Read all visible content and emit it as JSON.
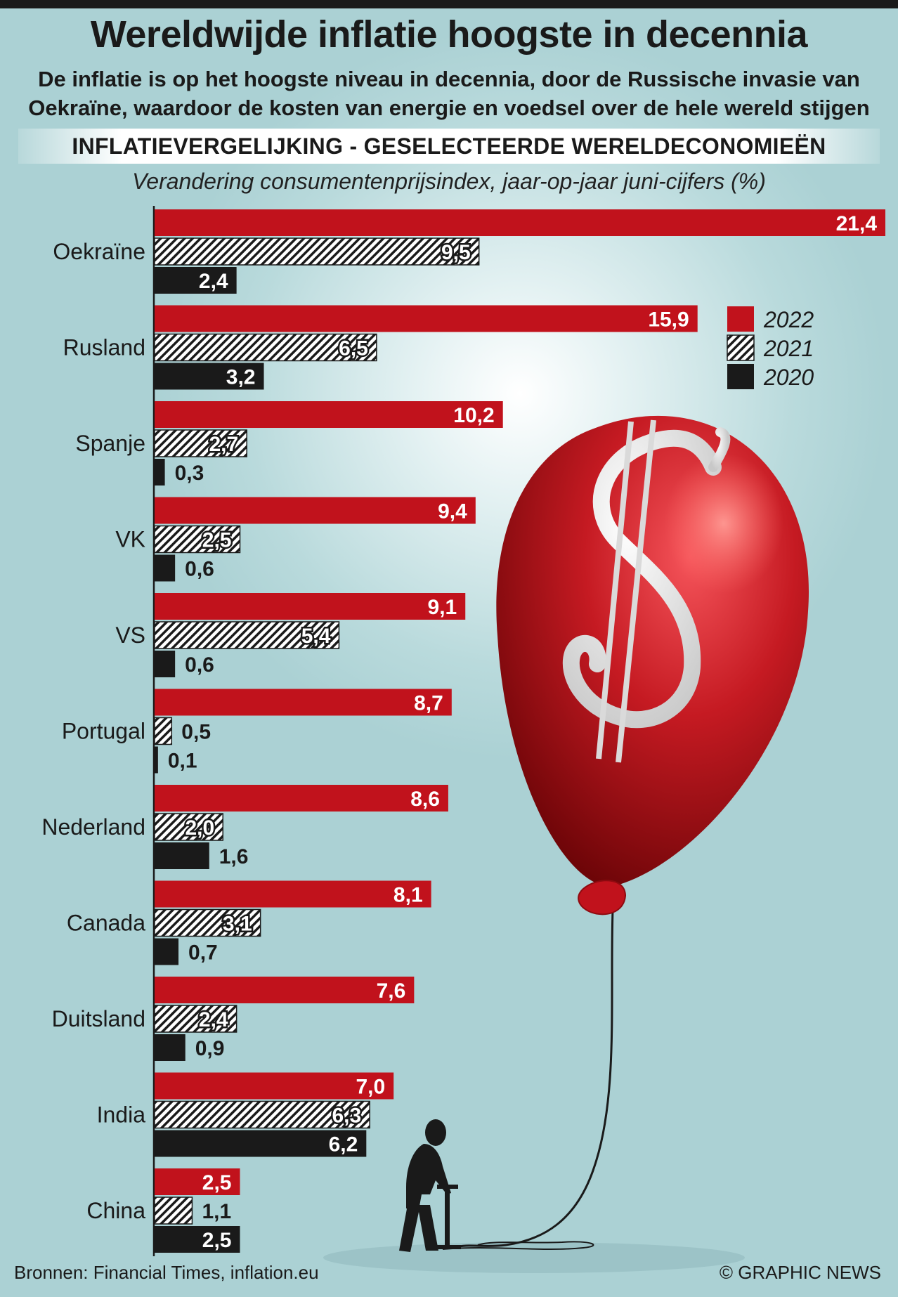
{
  "title": "Wereldwijde inflatie hoogste in decennia",
  "subtitle": "De inflatie is op het hoogste niveau in decennia, door de Russische invasie van Oekraïne, waardoor de kosten van energie en voedsel over de hele wereld stijgen",
  "banner": "INFLATIEVERGELIJKING - GESELECTEERDE WERELDECONOMIEËN",
  "unit_label": "Verandering consumentenprijsindex, jaar-op-jaar juni-cijfers (%)",
  "footer": {
    "sources": "Bronnen: Financial Times, inflation.eu",
    "credit": "© GRAPHIC NEWS"
  },
  "colors": {
    "series_2022": "#c1121c",
    "series_2021": "hatched-black",
    "series_2020": "#1a1a1a",
    "background": "#b9dadc"
  },
  "illustration": {
    "balloon_icon": "red-balloon-with-dollar-sign",
    "person_icon": "silhouette-man-with-air-pump"
  },
  "chart_data": {
    "type": "bar",
    "orientation": "horizontal",
    "categories": [
      "Oekraïne",
      "Rusland",
      "Spanje",
      "VK",
      "VS",
      "Portugal",
      "Nederland",
      "Canada",
      "Duitsland",
      "India",
      "China"
    ],
    "series": [
      {
        "name": "2022",
        "values": [
          21.4,
          15.9,
          10.2,
          9.4,
          9.1,
          8.7,
          8.6,
          8.1,
          7.6,
          7.0,
          2.5
        ],
        "labels": [
          "21,4",
          "15,9",
          "10,2",
          "9,4",
          "9,1",
          "8,7",
          "8,6",
          "8,1",
          "7,6",
          "7,0",
          "2,5"
        ]
      },
      {
        "name": "2021",
        "values": [
          9.5,
          6.5,
          2.7,
          2.5,
          5.4,
          0.5,
          2.0,
          3.1,
          2.4,
          6.3,
          1.1
        ],
        "labels": [
          "9,5",
          "6,5",
          "2,7",
          "2,5",
          "5,4",
          "0,5",
          "2,0",
          "3,1",
          "2,4",
          "6,3",
          "1,1"
        ]
      },
      {
        "name": "2020",
        "values": [
          2.4,
          3.2,
          0.3,
          0.6,
          0.6,
          0.1,
          1.6,
          0.7,
          0.9,
          6.2,
          2.5
        ],
        "labels": [
          "2,4",
          "3,2",
          "0,3",
          "0,6",
          "0,6",
          "0,1",
          "1,6",
          "0,7",
          "0,9",
          "6,2",
          "2,5"
        ]
      }
    ],
    "legend": [
      "2022",
      "2021",
      "2020"
    ],
    "legend_position": "top-right",
    "xlim": [
      0,
      21.4
    ],
    "grid": false
  }
}
